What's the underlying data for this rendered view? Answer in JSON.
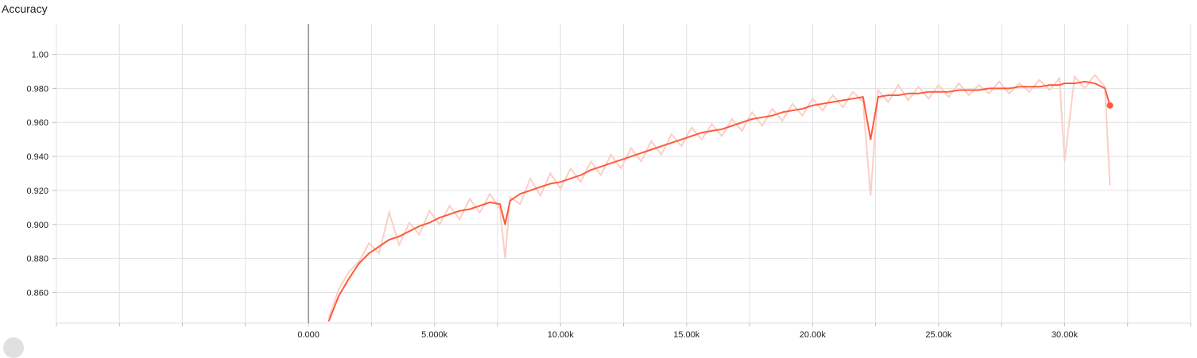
{
  "chart_data": {
    "type": "line",
    "title": "Accuracy",
    "xlabel": "",
    "ylabel": "",
    "xlim": [
      -10000,
      35000
    ],
    "ylim": [
      0.842,
      1.018
    ],
    "x_ticks": [
      0,
      5000,
      10000,
      15000,
      20000,
      25000,
      30000
    ],
    "x_tick_labels": [
      "0.000",
      "5.000k",
      "10.00k",
      "15.00k",
      "20.00k",
      "25.00k",
      "30.00k"
    ],
    "y_ticks": [
      0.86,
      0.88,
      0.9,
      0.92,
      0.94,
      0.96,
      0.98,
      1.0
    ],
    "y_tick_labels": [
      "0.860",
      "0.880",
      "0.900",
      "0.920",
      "0.940",
      "0.960",
      "0.980",
      "1.00"
    ],
    "grid": true,
    "series": [
      {
        "color": "#ff5a3c",
        "raw_color": "#fbcfc6",
        "last_point": [
          31800,
          0.97
        ],
        "x": [
          800,
          1200,
          1600,
          2000,
          2400,
          2800,
          3200,
          3600,
          4000,
          4400,
          4800,
          5200,
          5600,
          6000,
          6400,
          6800,
          7200,
          7600,
          7800,
          8000,
          8400,
          8800,
          9200,
          9600,
          10000,
          10400,
          10800,
          11200,
          11600,
          12000,
          12400,
          12800,
          13200,
          13600,
          14000,
          14400,
          14800,
          15200,
          15600,
          16000,
          16400,
          16800,
          17200,
          17600,
          18000,
          18400,
          18800,
          19200,
          19600,
          20000,
          20400,
          20800,
          21200,
          21600,
          22000,
          22300,
          22600,
          23000,
          23400,
          23800,
          24200,
          24600,
          25000,
          25400,
          25800,
          26200,
          26600,
          27000,
          27400,
          27800,
          28200,
          28600,
          29000,
          29400,
          29800,
          30000,
          30400,
          30800,
          31200,
          31600,
          31800
        ],
        "smoothed": [
          0.843,
          0.858,
          0.868,
          0.877,
          0.883,
          0.887,
          0.891,
          0.893,
          0.896,
          0.899,
          0.901,
          0.904,
          0.906,
          0.908,
          0.909,
          0.911,
          0.913,
          0.912,
          0.9,
          0.914,
          0.918,
          0.92,
          0.922,
          0.924,
          0.925,
          0.927,
          0.929,
          0.932,
          0.934,
          0.936,
          0.938,
          0.94,
          0.942,
          0.944,
          0.946,
          0.948,
          0.95,
          0.952,
          0.954,
          0.955,
          0.956,
          0.958,
          0.96,
          0.962,
          0.963,
          0.964,
          0.966,
          0.967,
          0.968,
          0.97,
          0.971,
          0.972,
          0.973,
          0.974,
          0.975,
          0.95,
          0.975,
          0.976,
          0.976,
          0.977,
          0.977,
          0.978,
          0.978,
          0.978,
          0.979,
          0.979,
          0.979,
          0.98,
          0.98,
          0.98,
          0.981,
          0.981,
          0.981,
          0.982,
          0.982,
          0.983,
          0.983,
          0.984,
          0.983,
          0.98,
          0.97
        ],
        "raw": [
          0.845,
          0.862,
          0.872,
          0.878,
          0.889,
          0.883,
          0.907,
          0.888,
          0.901,
          0.894,
          0.908,
          0.9,
          0.911,
          0.903,
          0.915,
          0.907,
          0.918,
          0.909,
          0.88,
          0.916,
          0.912,
          0.927,
          0.917,
          0.93,
          0.921,
          0.933,
          0.925,
          0.937,
          0.929,
          0.941,
          0.933,
          0.945,
          0.937,
          0.949,
          0.941,
          0.953,
          0.946,
          0.957,
          0.95,
          0.959,
          0.952,
          0.962,
          0.955,
          0.966,
          0.958,
          0.968,
          0.961,
          0.971,
          0.964,
          0.974,
          0.967,
          0.976,
          0.969,
          0.978,
          0.972,
          0.917,
          0.979,
          0.972,
          0.982,
          0.973,
          0.981,
          0.974,
          0.982,
          0.975,
          0.983,
          0.976,
          0.982,
          0.977,
          0.984,
          0.977,
          0.983,
          0.978,
          0.985,
          0.979,
          0.986,
          0.937,
          0.987,
          0.98,
          0.988,
          0.981,
          0.923
        ]
      }
    ]
  }
}
